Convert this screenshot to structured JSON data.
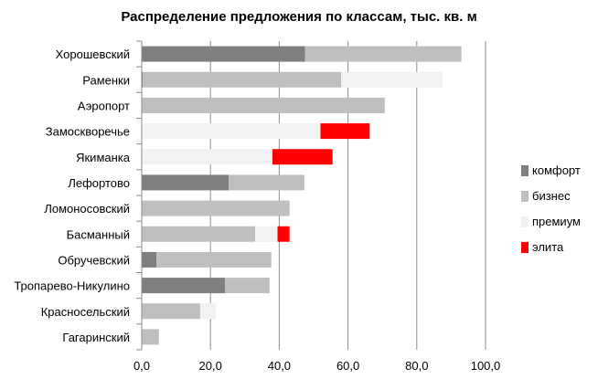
{
  "chart_data": {
    "type": "bar",
    "orientation": "horizontal",
    "stacked": true,
    "title": "Распределение предложения по классам, тыс. кв. м",
    "categories": [
      "Хорошевский",
      "Раменки",
      "Аэропорт",
      "Замоскворечье",
      "Якиманка",
      "Лефортово",
      "Ломоносовский",
      "Басманный",
      "Обручевский",
      "Тропарево-Никулино",
      "Красносельский",
      "Гагаринский"
    ],
    "series": [
      {
        "name": "комфорт",
        "color": "#7f7f7f",
        "values": [
          47.5,
          0.3,
          0,
          0,
          0,
          25.3,
          0,
          0,
          4.3,
          24.2,
          0,
          0
        ]
      },
      {
        "name": "бизнес",
        "color": "#bfbfbf",
        "values": [
          45.5,
          57.7,
          70.7,
          0,
          0,
          22.0,
          43.0,
          33.0,
          33.4,
          13.0,
          17.0,
          5.0
        ]
      },
      {
        "name": "премиум",
        "color": "#f2f2f2",
        "values": [
          0,
          29.5,
          0,
          52.0,
          38.0,
          0,
          0,
          6.5,
          0,
          0,
          4.5,
          0
        ]
      },
      {
        "name": "элита",
        "color": "#ff0000",
        "values": [
          0,
          0,
          0,
          14.3,
          17.5,
          0,
          0,
          3.5,
          0,
          0,
          0,
          0
        ]
      }
    ],
    "xlim": [
      0,
      100
    ],
    "xticks": [
      "0,0",
      "20,0",
      "40,0",
      "60,0",
      "80,0",
      "100,0"
    ],
    "grid": "vertical",
    "legend_position": "right"
  }
}
